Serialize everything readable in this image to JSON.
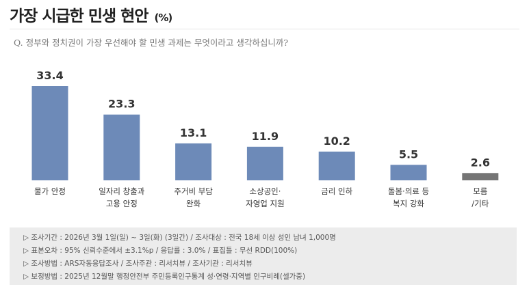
{
  "title": "가장 시급한 민생 현안",
  "unit": "(%)",
  "question": "Q. 정부와 정치권이 가장 우선해야 할 민생 과제는 무엇이라고 생각하십니까?",
  "colors": {
    "bar": "#6d8ab8",
    "bar_other": "#757575"
  },
  "chart_data": {
    "type": "bar",
    "categories": [
      [
        "물가 안정"
      ],
      [
        "일자리 창출과",
        "고용 안정"
      ],
      [
        "주거비 부담",
        "완화"
      ],
      [
        "소상공인·",
        "자영업 지원"
      ],
      [
        "금리 인하"
      ],
      [
        "돌봄·의료 등",
        "복지 강화"
      ],
      [
        "모름",
        "/기타"
      ]
    ],
    "values": [
      33.4,
      23.3,
      13.1,
      11.9,
      10.2,
      5.5,
      2.6
    ],
    "ylim": [
      0,
      33.4
    ]
  },
  "notes": [
    "▷ 조사기간 : 2026년 3월 1일(일) ~ 3일(화) (3일간) / 조사대상 : 전국 18세 이상 성인 남녀 1,000명",
    "▷ 표본오차 : 95% 신뢰수준에서 ±3.1%p / 응답률 : 3.0% / 표집틀 : 무선 RDD(100%)",
    "▷ 조사방법 : ARS자동응답조사 / 조사주관 : 리서치뷰 / 조사기관 : 리서치뷰",
    "▷ 보정방법 : 2025년 12월말 행정안전부 주민등록인구통계 성·연령·지역별 인구비례(셀가중)"
  ]
}
